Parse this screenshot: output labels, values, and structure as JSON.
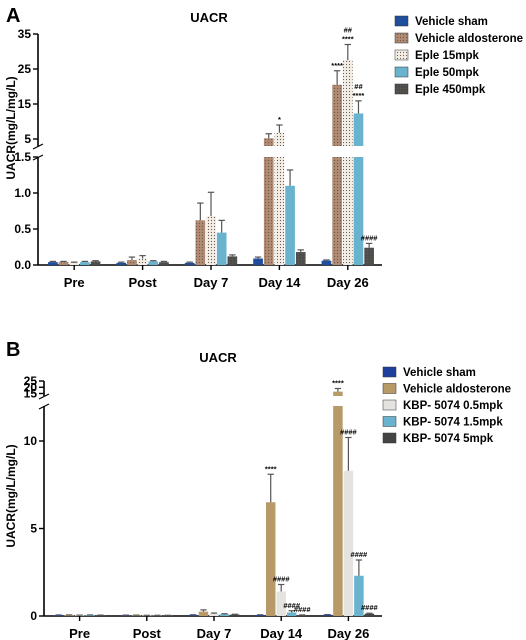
{
  "colors": {
    "axis": "#000000",
    "a_sham": "#1f4e9c",
    "a_aldo": "#b08a72",
    "a_e15": "#f3eee6",
    "a_e50": "#6ab3cf",
    "a_e450": "#4d4d4d",
    "b_sham": "#1f3f9c",
    "b_aldo": "#b89a68",
    "b_k05": "#e4e3df",
    "b_k15": "#6ab3cf",
    "b_k5": "#444444"
  },
  "chart_data": [
    {
      "type": "bar",
      "panel_label": "A",
      "title": "UACR",
      "ylabel": "UACR(mg/L/mg/L)",
      "xlabel": "",
      "categories": [
        "Pre",
        "Post",
        "Day 7",
        "Day 14",
        "Day 26"
      ],
      "y_axis_break": true,
      "lower_segment": {
        "ylim": [
          0,
          1.5
        ],
        "ticks": [
          "0.0",
          "0.5",
          "1.0",
          "1.5"
        ],
        "tick_values": [
          0,
          0.5,
          1.0,
          1.5
        ]
      },
      "upper_segment": {
        "ylim": [
          3,
          35
        ],
        "ticks": [
          "5",
          "15",
          "25",
          "35"
        ],
        "tick_values": [
          5,
          15,
          25,
          35
        ]
      },
      "legend_position": "top-right",
      "series": [
        {
          "name": "Vehicle sham",
          "values": [
            0.04,
            0.03,
            0.03,
            0.09,
            0.06
          ],
          "errors": [
            0.01,
            0.01,
            0.01,
            0.02,
            0.01
          ],
          "colorKey": "a_sham",
          "pattern": "solid"
        },
        {
          "name": "Vehicle aldosterone",
          "values": [
            0.04,
            0.07,
            0.62,
            5.2,
            20.5
          ],
          "errors": [
            0.01,
            0.04,
            0.24,
            1.3,
            4.0
          ],
          "colorKey": "a_aldo",
          "pattern": "dots"
        },
        {
          "name": "Eple 15mpk",
          "values": [
            0.03,
            0.09,
            0.68,
            6.8,
            27.5
          ],
          "errors": [
            0.01,
            0.04,
            0.33,
            2.2,
            4.5
          ],
          "colorKey": "a_e15",
          "pattern": "dots"
        },
        {
          "name": "Eple 50mpk",
          "values": [
            0.04,
            0.05,
            0.45,
            1.1,
            12.3
          ],
          "errors": [
            0.01,
            0.01,
            0.17,
            0.22,
            3.6
          ],
          "colorKey": "a_e50",
          "pattern": "solid"
        },
        {
          "name": "Eple 450mpk",
          "values": [
            0.05,
            0.04,
            0.12,
            0.18,
            0.24
          ],
          "errors": [
            0.01,
            0.01,
            0.02,
            0.03,
            0.06
          ],
          "colorKey": "a_e450",
          "pattern": "dots"
        }
      ],
      "annotations": [
        {
          "category": "Day 14",
          "series": 2,
          "text": "*"
        },
        {
          "category": "Day 26",
          "series": 1,
          "text": "****"
        },
        {
          "category": "Day 26",
          "series": 2,
          "text": "****"
        },
        {
          "category": "Day 26",
          "series": 2,
          "text": "##"
        },
        {
          "category": "Day 26",
          "series": 3,
          "text": "****"
        },
        {
          "category": "Day 26",
          "series": 3,
          "text": "##"
        },
        {
          "category": "Day 26",
          "series": 4,
          "text": "####"
        }
      ]
    },
    {
      "type": "bar",
      "panel_label": "B",
      "title": "UACR",
      "ylabel": "UACR(mg/L/mg/L)",
      "xlabel": "",
      "categories": [
        "Pre",
        "Post",
        "Day 7",
        "Day 14",
        "Day 26"
      ],
      "y_axis_break": true,
      "lower_segment": {
        "ylim": [
          0,
          12
        ],
        "ticks": [
          "0",
          "5",
          "10"
        ],
        "tick_values": [
          0,
          5,
          10
        ]
      },
      "upper_segment": {
        "ylim": [
          13,
          25
        ],
        "ticks": [
          "15",
          "20",
          "25"
        ],
        "tick_values": [
          15,
          20,
          25
        ]
      },
      "legend_position": "top-right",
      "series": [
        {
          "name": "Vehicle sham",
          "values": [
            0.05,
            0.04,
            0.06,
            0.06,
            0.07
          ],
          "errors": [
            0.01,
            0.01,
            0.01,
            0.01,
            0.01
          ],
          "colorKey": "b_sham",
          "pattern": "solid"
        },
        {
          "name": "Vehicle aldosterone",
          "values": [
            0.05,
            0.04,
            0.25,
            6.5,
            16.5
          ],
          "errors": [
            0.01,
            0.01,
            0.1,
            1.6,
            2.5
          ],
          "colorKey": "b_aldo",
          "pattern": "solid"
        },
        {
          "name": "KBP- 5074 0.5mpk",
          "values": [
            0.04,
            0.03,
            0.12,
            1.4,
            8.3
          ],
          "errors": [
            0.01,
            0.01,
            0.05,
            0.4,
            1.9
          ],
          "colorKey": "b_k05",
          "pattern": "solid"
        },
        {
          "name": "KBP- 5074 1.5mpk",
          "values": [
            0.05,
            0.03,
            0.1,
            0.2,
            2.3
          ],
          "errors": [
            0.01,
            0.01,
            0.03,
            0.1,
            0.9
          ],
          "colorKey": "b_k15",
          "pattern": "solid"
        },
        {
          "name": "KBP- 5074 5mpk",
          "values": [
            0.04,
            0.03,
            0.08,
            0.05,
            0.13
          ],
          "errors": [
            0.01,
            0.01,
            0.02,
            0.01,
            0.03
          ],
          "colorKey": "b_k5",
          "pattern": "solid"
        }
      ],
      "annotations": [
        {
          "category": "Day 14",
          "series": 1,
          "text": "****"
        },
        {
          "category": "Day 14",
          "series": 2,
          "text": "####"
        },
        {
          "category": "Day 14",
          "series": 3,
          "text": "####"
        },
        {
          "category": "Day 14",
          "series": 4,
          "text": "####"
        },
        {
          "category": "Day 26",
          "series": 1,
          "text": "****"
        },
        {
          "category": "Day 26",
          "series": 2,
          "text": "####"
        },
        {
          "category": "Day 26",
          "series": 3,
          "text": "####"
        },
        {
          "category": "Day 26",
          "series": 4,
          "text": "####"
        }
      ]
    }
  ]
}
